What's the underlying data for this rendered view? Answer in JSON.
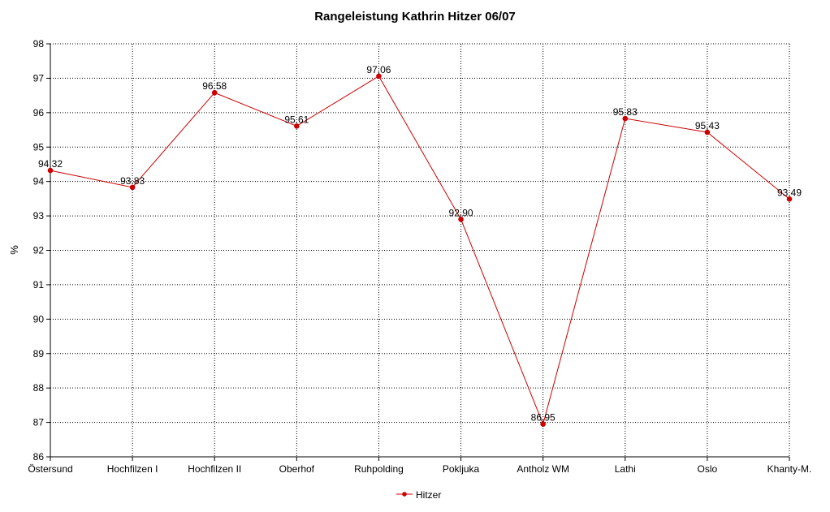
{
  "chart_data": {
    "type": "line",
    "title": "Rangeleistung Kathrin Hitzer 06/07",
    "xlabel": "",
    "ylabel": "%",
    "ylim": [
      86,
      98
    ],
    "yticks": [
      86,
      87,
      88,
      89,
      90,
      91,
      92,
      93,
      94,
      95,
      96,
      97,
      98
    ],
    "grid": true,
    "legend_position": "bottom",
    "categories": [
      "Östersund",
      "Hochfilzen I",
      "Hochfilzen II",
      "Oberhof",
      "Ruhpolding",
      "Pokljuka",
      "Antholz WM",
      "Lathi",
      "Oslo",
      "Khanty-M."
    ],
    "series": [
      {
        "name": "Hitzer",
        "color": "#cc0000",
        "values": [
          94.32,
          93.83,
          96.58,
          95.61,
          97.06,
          92.9,
          86.95,
          95.83,
          95.43,
          93.49
        ],
        "labels": [
          "94.32",
          "93.83",
          "96.58",
          "95.61",
          "97.06",
          "92.90",
          "86.95",
          "95.83",
          "95.43",
          "93.49"
        ]
      }
    ]
  }
}
